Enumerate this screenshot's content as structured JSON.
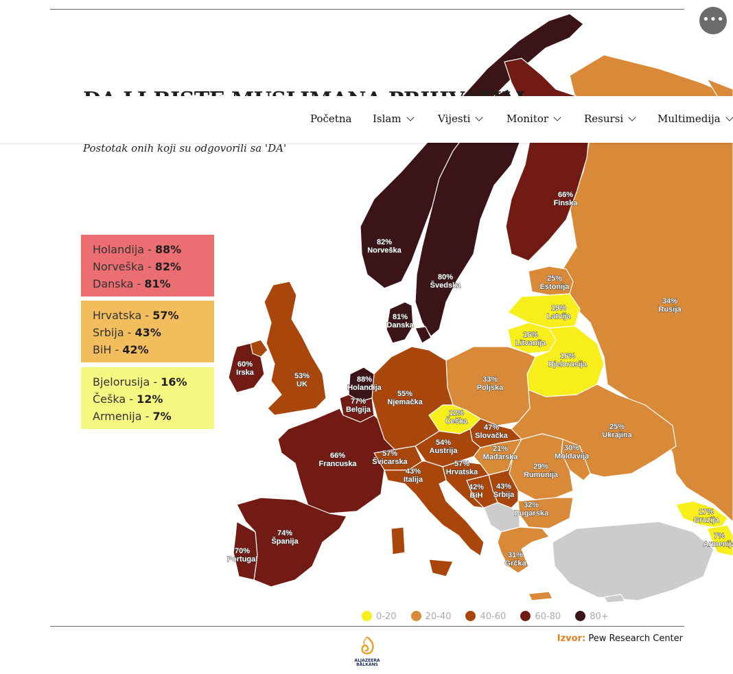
{
  "title": "DA LI BISTE MUSLIMANA PRIHVATILI",
  "subtitle": "Postotak onih koji su odgovorili sa 'DA'",
  "nav": [
    "Početna",
    "Islam",
    "Vijesti",
    "Monitor",
    "Resursi",
    "Multimedija"
  ],
  "more_icon": "ellipsis-icon",
  "summary_boxes": [
    {
      "color": "#ea6e72",
      "rows": [
        {
          "country": "Holandija",
          "value": "88%"
        },
        {
          "country": "Norveška",
          "value": "82%"
        },
        {
          "country": "Danska",
          "value": "81%"
        }
      ]
    },
    {
      "color": "#f2bd5c",
      "rows": [
        {
          "country": "Hrvatska",
          "value": "57%"
        },
        {
          "country": "Srbija",
          "value": "43%"
        },
        {
          "country": "BiH",
          "value": "42%"
        }
      ]
    },
    {
      "color": "#f6f780",
      "rows": [
        {
          "country": "Bjelorusija",
          "value": "16%"
        },
        {
          "country": "Češka",
          "value": "12%"
        },
        {
          "country": "Armenija",
          "value": "7%"
        }
      ]
    }
  ],
  "map_labels": [
    {
      "country": "Norveška",
      "value": "82%"
    },
    {
      "country": "Švedska",
      "value": "80%"
    },
    {
      "country": "Finska",
      "value": "66%"
    },
    {
      "country": "Estonija",
      "value": "25%"
    },
    {
      "country": "Latvija",
      "value": "19%"
    },
    {
      "country": "Litvanija",
      "value": "16%"
    },
    {
      "country": "Rusija",
      "value": "34%"
    },
    {
      "country": "Danska",
      "value": "81%"
    },
    {
      "country": "Irska",
      "value": "60%"
    },
    {
      "country": "UK",
      "value": "53%"
    },
    {
      "country": "Holandija",
      "value": "88%"
    },
    {
      "country": "Belgija",
      "value": "77%"
    },
    {
      "country": "Njemačka",
      "value": "55%"
    },
    {
      "country": "Poljska",
      "value": "33%"
    },
    {
      "country": "Bjelorusija",
      "value": "16%"
    },
    {
      "country": "Češka",
      "value": "12%"
    },
    {
      "country": "Slovačka",
      "value": "47%"
    },
    {
      "country": "Ukrajina",
      "value": "25%"
    },
    {
      "country": "Austrija",
      "value": "54%"
    },
    {
      "country": "Mađarska",
      "value": "21%"
    },
    {
      "country": "Moldavija",
      "value": "30%"
    },
    {
      "country": "Francuska",
      "value": "66%"
    },
    {
      "country": "Švicarska",
      "value": "57%"
    },
    {
      "country": "Hrvatska",
      "value": "57%"
    },
    {
      "country": "Rumunija",
      "value": "29%"
    },
    {
      "country": "Italija",
      "value": "43%"
    },
    {
      "country": "BiH",
      "value": "42%"
    },
    {
      "country": "Srbija",
      "value": "43%"
    },
    {
      "country": "Bugarska",
      "value": "32%"
    },
    {
      "country": "Gruzija",
      "value": "17%"
    },
    {
      "country": "Armenija",
      "value": "7%"
    },
    {
      "country": "Španija",
      "value": "74%"
    },
    {
      "country": "Portugal",
      "value": "70%"
    },
    {
      "country": "Grčka",
      "value": "31%"
    }
  ],
  "legend": [
    {
      "label": "0-20",
      "color": "#f7ee1c"
    },
    {
      "label": "20-40",
      "color": "#d98a38"
    },
    {
      "label": "40-60",
      "color": "#a8460c"
    },
    {
      "label": "60-80",
      "color": "#711b14"
    },
    {
      "label": "80+",
      "color": "#3a1416"
    }
  ],
  "source": {
    "label": "Izvor:",
    "text": "Pew Research Center"
  },
  "logo": {
    "line1": "ALJAZEERA",
    "line2": "BALKANS"
  }
}
